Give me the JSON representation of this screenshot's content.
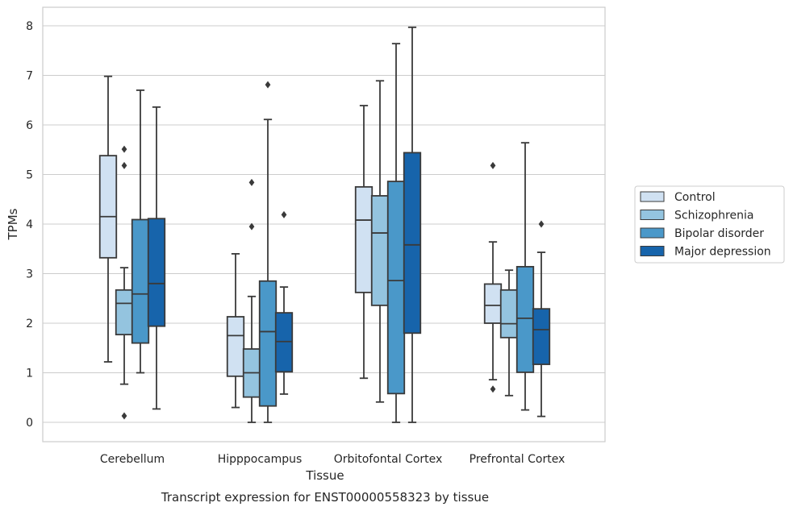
{
  "chart_data": {
    "type": "boxplot",
    "title": "",
    "caption": "Transcript expression for ENST00000558323 by tissue",
    "xlabel": "Tissue",
    "ylabel": "TPMs",
    "ylim": [
      -0.4,
      8.4
    ],
    "yticks": [
      0,
      1,
      2,
      3,
      4,
      5,
      6,
      7,
      8
    ],
    "grid": true,
    "legend_position": "right",
    "categories": [
      "Cerebellum",
      "Hipppocampus",
      "Orbitofontal Cortex",
      "Prefrontal Cortex"
    ],
    "series": [
      {
        "name": "Control",
        "color": "#d0e1f2",
        "boxes": [
          {
            "whislo": 1.22,
            "q1": 3.32,
            "med": 4.15,
            "q3": 5.38,
            "whishi": 6.98,
            "fliers": []
          },
          {
            "whislo": 0.3,
            "q1": 0.93,
            "med": 1.75,
            "q3": 2.13,
            "whishi": 3.4,
            "fliers": []
          },
          {
            "whislo": 0.89,
            "q1": 2.62,
            "med": 4.08,
            "q3": 4.75,
            "whishi": 6.39,
            "fliers": []
          },
          {
            "whislo": 0.86,
            "q1": 2.0,
            "med": 2.36,
            "q3": 2.79,
            "whishi": 3.64,
            "fliers": [
              5.18,
              0.67
            ]
          }
        ]
      },
      {
        "name": "Schizophrenia",
        "color": "#94c4df",
        "boxes": [
          {
            "whislo": 0.77,
            "q1": 1.77,
            "med": 2.4,
            "q3": 2.67,
            "whishi": 3.12,
            "fliers": [
              5.51,
              5.18,
              0.13
            ]
          },
          {
            "whislo": 0.0,
            "q1": 0.51,
            "med": 1.0,
            "q3": 1.48,
            "whishi": 2.54,
            "fliers": [
              4.84,
              3.95
            ]
          },
          {
            "whislo": 0.41,
            "q1": 2.36,
            "med": 3.82,
            "q3": 4.57,
            "whishi": 6.89,
            "fliers": []
          },
          {
            "whislo": 0.54,
            "q1": 1.71,
            "med": 1.99,
            "q3": 2.67,
            "whishi": 3.07,
            "fliers": []
          }
        ]
      },
      {
        "name": "Bipolar disorder",
        "color": "#4a98c9",
        "boxes": [
          {
            "whislo": 1.0,
            "q1": 1.6,
            "med": 2.59,
            "q3": 4.09,
            "whishi": 6.7,
            "fliers": []
          },
          {
            "whislo": 0.0,
            "q1": 0.33,
            "med": 1.83,
            "q3": 2.85,
            "whishi": 6.11,
            "fliers": [
              6.81
            ]
          },
          {
            "whislo": 0.0,
            "q1": 0.58,
            "med": 2.86,
            "q3": 4.86,
            "whishi": 7.64,
            "fliers": []
          },
          {
            "whislo": 0.25,
            "q1": 1.01,
            "med": 2.1,
            "q3": 3.14,
            "whishi": 5.64,
            "fliers": []
          }
        ]
      },
      {
        "name": "Major depression",
        "color": "#1764ab",
        "boxes": [
          {
            "whislo": 0.27,
            "q1": 1.94,
            "med": 2.8,
            "q3": 4.11,
            "whishi": 6.36,
            "fliers": []
          },
          {
            "whislo": 0.57,
            "q1": 1.02,
            "med": 1.63,
            "q3": 2.21,
            "whishi": 2.73,
            "fliers": [
              4.19
            ]
          },
          {
            "whislo": 0.0,
            "q1": 1.8,
            "med": 3.58,
            "q3": 5.44,
            "whishi": 7.97,
            "fliers": []
          },
          {
            "whislo": 0.12,
            "q1": 1.17,
            "med": 1.87,
            "q3": 2.29,
            "whishi": 3.43,
            "fliers": [
              4.0
            ]
          }
        ]
      }
    ]
  }
}
